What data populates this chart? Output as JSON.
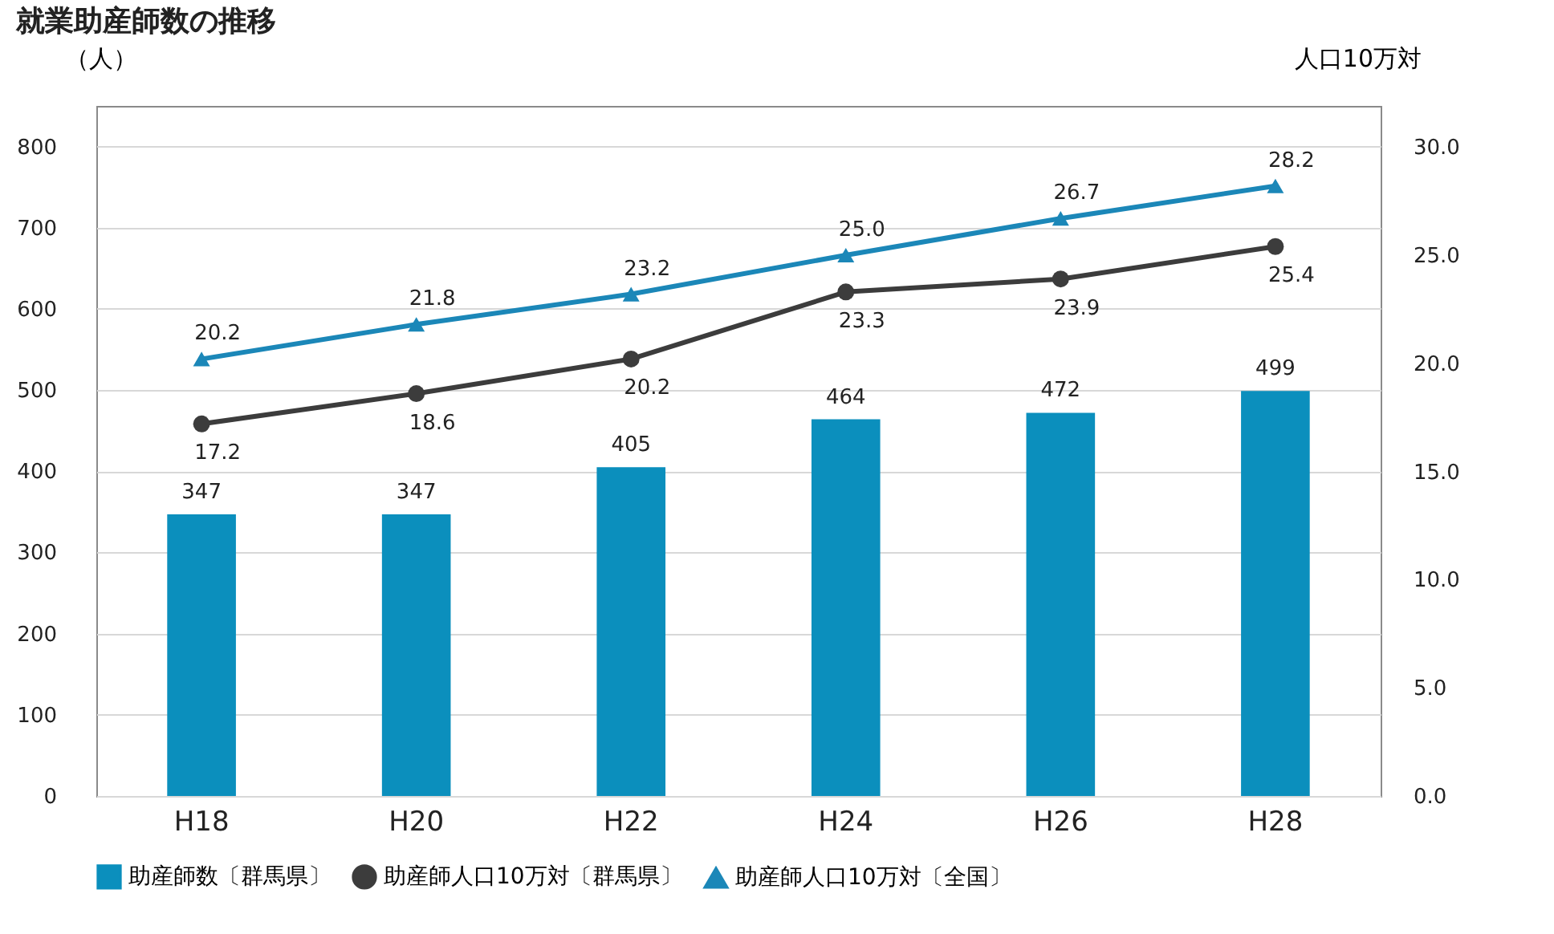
{
  "chart_data": {
    "type": "bar",
    "title": "就業助産師数の推移",
    "ylabel": "（人）",
    "y2label": "人口10万対",
    "categories": [
      "H18",
      "H20",
      "H22",
      "H24",
      "H26",
      "H28"
    ],
    "series": [
      {
        "name": "助産師数〔群馬県〕",
        "color": "#0b8fbd",
        "values": [
          347,
          347,
          405,
          464,
          472,
          499
        ]
      },
      {
        "name": "助産師人口10万対〔群馬県〕",
        "type": "line",
        "axis": "y2",
        "marker": "circle",
        "color": "#3c3c3c",
        "values": [
          17.2,
          18.6,
          20.2,
          23.3,
          23.9,
          25.4
        ],
        "value_labels": [
          "17.2",
          "18.6",
          "20.2",
          "23.3",
          "23.9",
          "25.4"
        ]
      },
      {
        "name": "助産師人口10万対〔全国〕",
        "type": "line",
        "axis": "y2",
        "marker": "triangle",
        "color": "#1b87b8",
        "values": [
          20.2,
          21.8,
          23.2,
          25.0,
          26.7,
          28.2
        ],
        "value_labels": [
          "20.2",
          "21.8",
          "23.2",
          "25.0",
          "26.7",
          "28.2"
        ]
      }
    ],
    "ylim": [
      0,
      850
    ],
    "yticks": [
      0,
      100,
      200,
      300,
      400,
      500,
      600,
      700,
      800
    ],
    "y2lim": [
      0,
      31.9
    ],
    "y2ticks": [
      {
        "value": 0,
        "label": "0.0"
      },
      {
        "value": 5,
        "label": "5.0"
      },
      {
        "value": 10,
        "label": "10.0"
      },
      {
        "value": 15,
        "label": "15.0"
      },
      {
        "value": 20,
        "label": "20.0"
      },
      {
        "value": 25,
        "label": "25.0"
      },
      {
        "value": 30,
        "label": "30.0"
      }
    ],
    "grid": "y",
    "legend": "bottom",
    "data_labels": true
  }
}
